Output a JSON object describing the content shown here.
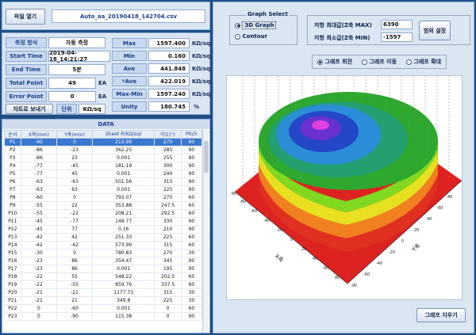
{
  "file": {
    "button": "파일 열기",
    "filename": "Auto_aa_20190418_142704.csv"
  },
  "info": {
    "method_label": "측정 방식",
    "method_value": "자동 측정",
    "start_label": "Start Time",
    "start_value": "2019-04-18_14:21:27",
    "end_label": "End Time",
    "end_value": "5분",
    "total_label": "Total Point",
    "total_value": "49",
    "total_unit": "EA",
    "error_label": "Error Point",
    "error_value": "0",
    "error_unit": "EA",
    "chart_button": "차트로 보내기",
    "unit_label": "단위",
    "unit_value": "KΩ/sq"
  },
  "stats": [
    {
      "label": "Max",
      "value": "1597.400",
      "unit": "KΩ/sq"
    },
    {
      "label": "Min",
      "value": "0.160",
      "unit": "KΩ/sq"
    },
    {
      "label": "Ave",
      "value": "441.848",
      "unit": "KΩ/sq"
    },
    {
      "label": "*Ave",
      "value": "422.019",
      "unit": "KΩ/sq"
    },
    {
      "label": "Max-Min",
      "value": "1597.240",
      "unit": "KΩ/sq"
    },
    {
      "label": "Unity",
      "value": "180.745",
      "unit": "%"
    }
  ],
  "data_table": {
    "title": "DATA",
    "headers": [
      "순서",
      "X축(mm)",
      "Y축(mm)",
      "Sheet R(KΩ/sq)",
      "각도(°)",
      "Pitch"
    ],
    "rows": [
      [
        "P1",
        "-90",
        "0",
        "213.99",
        "270",
        "90"
      ],
      [
        "P2",
        "-86",
        "-23",
        "362.25",
        "285",
        "90"
      ],
      [
        "P3",
        "-86",
        "23",
        "0.001",
        "255",
        "90"
      ],
      [
        "P4",
        "-77",
        "-45",
        "181.19",
        "300",
        "90"
      ],
      [
        "P5",
        "-77",
        "45",
        "0.001",
        "240",
        "90"
      ],
      [
        "P6",
        "-63",
        "-63",
        "501.56",
        "315",
        "90"
      ],
      [
        "P7",
        "-63",
        "63",
        "0.001",
        "225",
        "90"
      ],
      [
        "P8",
        "-60",
        "0",
        "793.07",
        "270",
        "60"
      ],
      [
        "P9",
        "-55",
        "22",
        "353.88",
        "247.5",
        "60"
      ],
      [
        "P10",
        "-55",
        "-22",
        "208.21",
        "292.5",
        "60"
      ],
      [
        "P11",
        "-45",
        "-77",
        "149.77",
        "330",
        "90"
      ],
      [
        "P12",
        "-45",
        "77",
        "0.16",
        "210",
        "90"
      ],
      [
        "P13",
        "-42",
        "42",
        "251.33",
        "225",
        "60"
      ],
      [
        "P14",
        "-42",
        "-42",
        "573.99",
        "315",
        "60"
      ],
      [
        "P15",
        "-30",
        "0",
        "780.83",
        "270",
        "30"
      ],
      [
        "P16",
        "-23",
        "86",
        "354.47",
        "345",
        "90"
      ],
      [
        "P17",
        "-23",
        "86",
        "0.001",
        "195",
        "90"
      ],
      [
        "P18",
        "-22",
        "55",
        "548.22",
        "202.5",
        "60"
      ],
      [
        "P19",
        "-22",
        "-55",
        "859.76",
        "337.5",
        "60"
      ],
      [
        "P20",
        "-21",
        "-21",
        "1177.73",
        "315",
        "30"
      ],
      [
        "P21",
        "-21",
        "21",
        "349.8",
        "225",
        "30"
      ],
      [
        "P22",
        "0",
        "-60",
        "0.001",
        "0",
        "60"
      ],
      [
        "P23",
        "0",
        "-90",
        "115.38",
        "0",
        "90"
      ]
    ]
  },
  "graph_select": {
    "title": "Graph Select",
    "options": [
      "3D Graph",
      "Contour"
    ],
    "selected": 0
  },
  "range": {
    "max_label": "저항 최대값(Z축 MAX)",
    "max_value": "6390",
    "min_label": "저항 최소값(Z축 MIN)",
    "min_value": "-1597",
    "set_button": "범위 설정"
  },
  "view_modes": {
    "options": [
      "그래프 회전",
      "그래프 이동",
      "그래프 확대"
    ],
    "selected": 0
  },
  "axes": {
    "x_label": "X축",
    "y_label": "Y축",
    "ticks": [
      "-90",
      "-80",
      "-60",
      "-40",
      "-20",
      "0",
      "20",
      "40",
      "60",
      "80",
      "90"
    ]
  },
  "clear_button": "그래프 지우기",
  "colors": {
    "base_plate": "#dd2222",
    "background": "#ffffff",
    "accent": "#1f4f86"
  }
}
